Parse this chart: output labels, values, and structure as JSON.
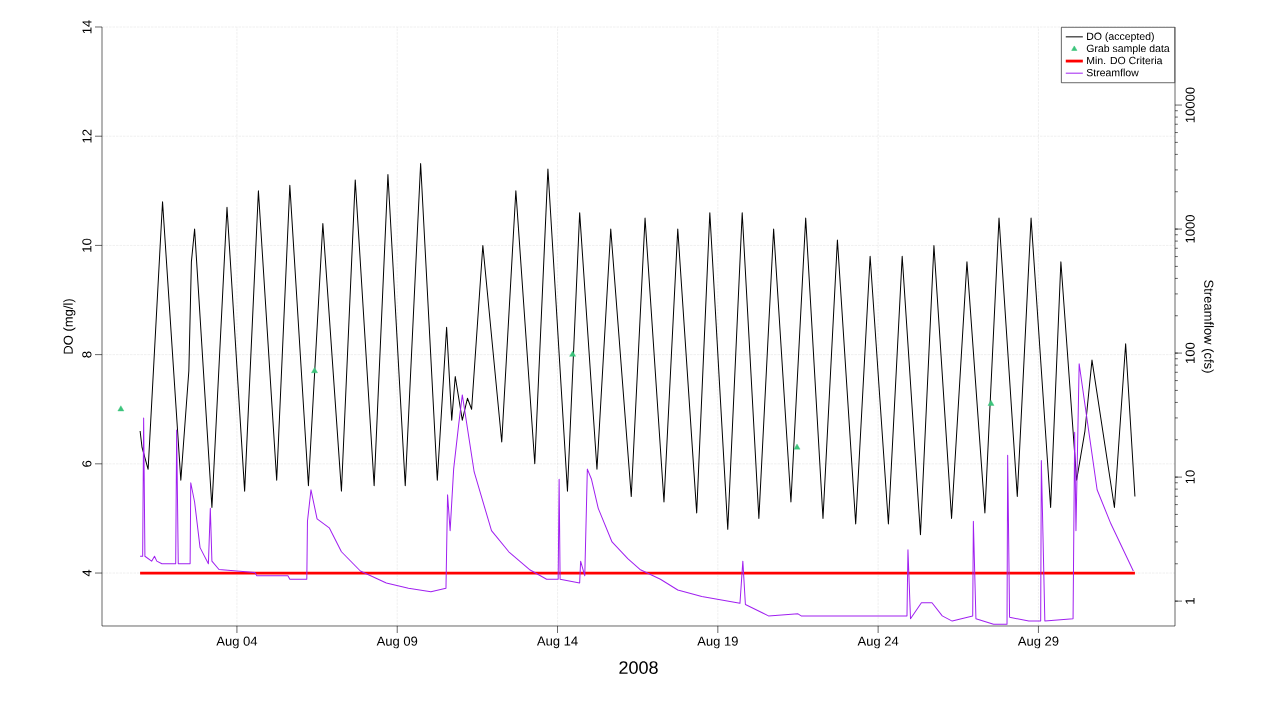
{
  "chart_data": {
    "type": "line",
    "xlabel": "2008",
    "ylabel": "DO (mg/l)",
    "y2label": "Streamflow (cfs)",
    "xlim": [
      "2008-07-30T19:00",
      "2008-09-02T06:14"
    ],
    "xticks": [
      {
        "value": "2008-08-04",
        "label": "Aug 04"
      },
      {
        "value": "2008-08-09",
        "label": "Aug 09"
      },
      {
        "value": "2008-08-14",
        "label": "Aug 14"
      },
      {
        "value": "2008-08-19",
        "label": "Aug 19"
      },
      {
        "value": "2008-08-24",
        "label": "Aug 24"
      },
      {
        "value": "2008-08-29",
        "label": "Aug 29"
      }
    ],
    "ylim": [
      3.03,
      14
    ],
    "yticks": [
      4,
      6,
      8,
      10,
      12,
      14
    ],
    "y2lim": [
      0.63,
      42600
    ],
    "y2ticks": [
      1,
      10,
      100,
      1000,
      10000
    ],
    "log": "y2",
    "grid": true,
    "legend": "top right",
    "series": [
      {
        "name": "DO (accepted)",
        "color": "#000000",
        "x": [
          "2008-07-31T23:31",
          "2008-08-01T00:58",
          "2008-08-01T05:31",
          "2008-08-01T16:19",
          "2008-08-02T06:00",
          "2008-08-02T12:00",
          "2008-08-02T13:55",
          "2008-08-02T16:19",
          "2008-08-03T05:17",
          "2008-08-03T16:34",
          "2008-08-04T05:46",
          "2008-08-04T16:05",
          "2008-08-05T05:46",
          "2008-08-05T15:36",
          "2008-08-06T05:31",
          "2008-08-06T16:19",
          "2008-08-07T06:14",
          "2008-08-07T16:34",
          "2008-08-08T06:43",
          "2008-08-08T17:02",
          "2008-08-09T06:00",
          "2008-08-09T17:31",
          "2008-08-10T06:00",
          "2008-08-10T12:58",
          "2008-08-10T16:48",
          "2008-08-10T19:26",
          "2008-08-11T00:43",
          "2008-08-11T04:34",
          "2008-08-11T07:41",
          "2008-08-11T16:05",
          "2008-08-12T06:14",
          "2008-08-12T16:48",
          "2008-08-13T06:58",
          "2008-08-13T16:48",
          "2008-08-14T07:26",
          "2008-08-14T16:34",
          "2008-08-15T05:31",
          "2008-08-15T15:50",
          "2008-08-16T07:12",
          "2008-08-16T17:31",
          "2008-08-17T07:41",
          "2008-08-17T18:00",
          "2008-08-18T08:10",
          "2008-08-18T18:00",
          "2008-08-19T07:26",
          "2008-08-19T18:14",
          "2008-08-20T06:43",
          "2008-08-20T17:46",
          "2008-08-21T06:43",
          "2008-08-21T17:46",
          "2008-08-22T06:43",
          "2008-08-22T17:31",
          "2008-08-23T07:12",
          "2008-08-23T18:00",
          "2008-08-24T07:41",
          "2008-08-24T18:00",
          "2008-08-25T07:41",
          "2008-08-25T17:46",
          "2008-08-26T06:58",
          "2008-08-26T18:29",
          "2008-08-27T07:55",
          "2008-08-27T18:29",
          "2008-08-28T08:10",
          "2008-08-28T18:29",
          "2008-08-29T09:07",
          "2008-08-29T16:48",
          "2008-08-30T04:34",
          "2008-08-30T10:48",
          "2008-08-30T16:05",
          "2008-08-31T08:53",
          "2008-08-31T17:17",
          "2008-09-01T00:14"
        ],
        "values": [
          6.6,
          6.3,
          5.9,
          10.8,
          5.7,
          7.7,
          9.7,
          10.3,
          5.2,
          10.7,
          5.5,
          11.0,
          5.7,
          11.1,
          5.6,
          10.4,
          5.5,
          11.2,
          5.6,
          11.3,
          5.6,
          11.5,
          5.7,
          8.5,
          6.8,
          7.6,
          6.8,
          7.2,
          7.0,
          10.0,
          6.4,
          11.0,
          6.0,
          11.4,
          5.5,
          10.6,
          5.9,
          10.3,
          5.4,
          10.5,
          5.3,
          10.3,
          5.1,
          10.6,
          4.8,
          10.6,
          5.0,
          10.3,
          5.3,
          10.5,
          5.0,
          10.1,
          4.9,
          9.8,
          4.9,
          9.8,
          4.7,
          10.0,
          5.0,
          9.7,
          5.1,
          10.5,
          5.4,
          10.5,
          5.2,
          9.7,
          5.7,
          6.6,
          7.9,
          5.2,
          8.2,
          5.4
        ]
      },
      {
        "name": "Grab sample data",
        "type": "scatter",
        "marker": "triangle",
        "color": "#3cc47c",
        "x": [
          "2008-07-31T09:07",
          "2008-08-06T10:05",
          "2008-08-14T11:17",
          "2008-08-21T11:17",
          "2008-08-27T12:29"
        ],
        "values": [
          7.0,
          7.7,
          8.0,
          6.3,
          7.1
        ]
      },
      {
        "name": "Min. DO Criteria",
        "color": "#ff0000",
        "x": [
          "2008-07-31T23:31",
          "2008-09-01T00:14"
        ],
        "values": [
          4,
          4
        ]
      },
      {
        "name": "Streamflow",
        "color": "#a020f0",
        "axis": "y2",
        "x": [
          "2008-07-31T23:31",
          "2008-08-01T01:26",
          "2008-08-01T02:10",
          "2008-08-01T03:07",
          "2008-08-01T08:10",
          "2008-08-01T10:19",
          "2008-08-01T12:00",
          "2008-08-01T15:50",
          "2008-08-02T02:10",
          "2008-08-02T02:53",
          "2008-08-02T04:05",
          "2008-08-02T12:58",
          "2008-08-02T13:26",
          "2008-08-02T16:19",
          "2008-08-02T20:24",
          "2008-08-03T02:38",
          "2008-08-03T04:05",
          "2008-08-03T05:17",
          "2008-08-03T10:34",
          "2008-08-04T13:26",
          "2008-08-04T14:53",
          "2008-08-05T14:10",
          "2008-08-05T15:36",
          "2008-08-06T04:19",
          "2008-08-06T04:48",
          "2008-08-06T07:26",
          "2008-08-06T12:00",
          "2008-08-06T21:07",
          "2008-08-07T06:14",
          "2008-08-07T20:24",
          "2008-08-08T15:50",
          "2008-08-09T08:24",
          "2008-08-10T01:12",
          "2008-08-10T12:29",
          "2008-08-10T13:41",
          "2008-08-10T15:36",
          "2008-08-10T18:14",
          "2008-08-10T22:05",
          "2008-08-11T00:43",
          "2008-08-11T09:36",
          "2008-08-11T22:34",
          "2008-08-12T11:31",
          "2008-08-13T02:53",
          "2008-08-13T15:50",
          "2008-08-14T00:29",
          "2008-08-14T01:12",
          "2008-08-14T01:55",
          "2008-08-14T16:34",
          "2008-08-14T17:17",
          "2008-08-14T20:24",
          "2008-08-14T22:19",
          "2008-08-15T01:26",
          "2008-08-15T06:29",
          "2008-08-15T16:48",
          "2008-08-16T04:34",
          "2008-08-16T13:41",
          "2008-08-17T05:02",
          "2008-08-17T18:00",
          "2008-08-18T12:00",
          "2008-08-19T16:34",
          "2008-08-19T18:43",
          "2008-08-19T20:38",
          "2008-08-20T13:55",
          "2008-08-21T12:00",
          "2008-08-21T14:24",
          "2008-08-24T21:36",
          "2008-08-24T22:19",
          "2008-08-25T00:14",
          "2008-08-25T08:24",
          "2008-08-25T16:19",
          "2008-08-26T00:00",
          "2008-08-26T07:26",
          "2008-08-26T22:48",
          "2008-08-26T23:17",
          "2008-08-27T01:12",
          "2008-08-27T14:24",
          "2008-08-28T00:29",
          "2008-08-28T00:58",
          "2008-08-28T02:24",
          "2008-08-28T16:48",
          "2008-08-29T01:41",
          "2008-08-29T02:10",
          "2008-08-29T04:48",
          "2008-08-30T01:55",
          "2008-08-30T03:07",
          "2008-08-30T04:05",
          "2008-08-30T06:29",
          "2008-08-30T12:14",
          "2008-08-30T19:55",
          "2008-08-31T06:14",
          "2008-08-31T23:02"
        ],
        "values": [
          2.3,
          2.3,
          30,
          2.3,
          2.1,
          2.3,
          2.1,
          2.0,
          2.0,
          24,
          2.0,
          2.0,
          9.0,
          6.3,
          2.7,
          2.0,
          5.6,
          2.1,
          1.8,
          1.7,
          1.6,
          1.6,
          1.5,
          1.5,
          4.4,
          7.9,
          4.6,
          3.9,
          2.5,
          1.75,
          1.4,
          1.27,
          1.19,
          1.27,
          7.2,
          3.7,
          11.6,
          27,
          46,
          11,
          3.7,
          2.5,
          1.8,
          1.5,
          1.5,
          9.6,
          1.5,
          1.4,
          2.1,
          1.6,
          11.6,
          9.6,
          5.6,
          3.0,
          2.2,
          1.8,
          1.5,
          1.23,
          1.09,
          0.96,
          2.1,
          0.94,
          0.76,
          0.79,
          0.76,
          0.76,
          2.6,
          0.72,
          0.97,
          0.97,
          0.76,
          0.69,
          0.76,
          4.4,
          0.72,
          0.65,
          0.65,
          15,
          0.74,
          0.69,
          0.69,
          13.6,
          0.69,
          0.72,
          23,
          3.7,
          82,
          30,
          7.9,
          4.2,
          1.75
        ]
      }
    ]
  }
}
